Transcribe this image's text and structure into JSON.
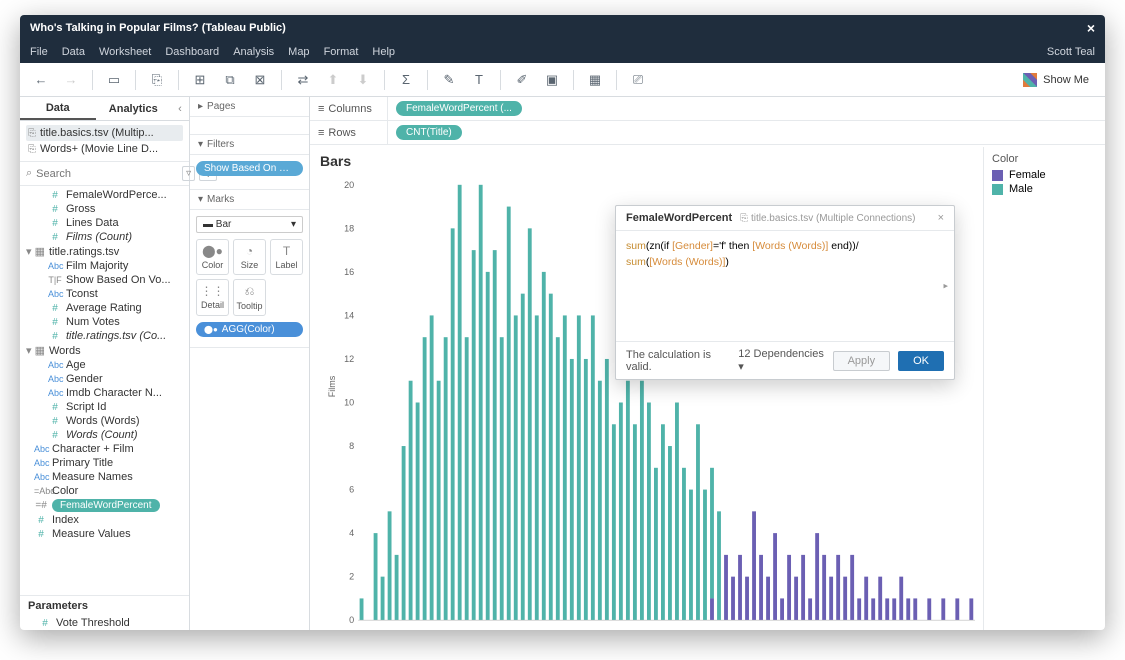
{
  "window": {
    "title": "Who's Talking in Popular Films? (Tableau Public)",
    "user": "Scott Teal"
  },
  "menu": [
    "File",
    "Data",
    "Worksheet",
    "Dashboard",
    "Analysis",
    "Map",
    "Format",
    "Help"
  ],
  "showme": "Show Me",
  "left_tabs": {
    "data": "Data",
    "analytics": "Analytics"
  },
  "datasources": [
    {
      "name": "title.basics.tsv (Multip...",
      "active": true
    },
    {
      "name": "Words+ (Movie Line D...",
      "active": false
    }
  ],
  "search_placeholder": "Search",
  "fields": {
    "top": [
      {
        "icon": "#",
        "name": "FemaleWordPerce...",
        "italic": false
      },
      {
        "icon": "#",
        "name": "Gross",
        "italic": false
      },
      {
        "icon": "#",
        "name": "Lines Data",
        "italic": false
      },
      {
        "icon": "#",
        "name": "Films (Count)",
        "italic": true
      }
    ],
    "group2_name": "title.ratings.tsv",
    "group2": [
      {
        "icon": "Abc",
        "name": "Film Majority"
      },
      {
        "icon": "T|F",
        "name": "Show Based On Vo..."
      },
      {
        "icon": "Abc",
        "name": "Tconst"
      },
      {
        "icon": "#",
        "name": "Average Rating"
      },
      {
        "icon": "#",
        "name": "Num Votes"
      },
      {
        "icon": "#",
        "name": "title.ratings.tsv (Co...",
        "italic": true
      }
    ],
    "group3_name": "Words",
    "group3": [
      {
        "icon": "Abc",
        "name": "Age"
      },
      {
        "icon": "Abc",
        "name": "Gender"
      },
      {
        "icon": "Abc",
        "name": "Imdb Character N..."
      },
      {
        "icon": "#",
        "name": "Script Id"
      },
      {
        "icon": "#",
        "name": "Words (Words)"
      },
      {
        "icon": "#",
        "name": "Words (Count)",
        "italic": true
      }
    ],
    "bottom": [
      {
        "icon": "Abc",
        "name": "Character + Film"
      },
      {
        "icon": "Abc",
        "name": "Primary Title"
      },
      {
        "icon": "Abc",
        "name": "Measure Names"
      },
      {
        "icon": "=Abc",
        "name": "Color"
      },
      {
        "icon": "pill",
        "name": "FemaleWordPercent"
      },
      {
        "icon": "#",
        "name": "Index"
      },
      {
        "icon": "#",
        "name": "Measure Values"
      }
    ]
  },
  "parameters": {
    "header": "Parameters",
    "items": [
      {
        "icon": "#",
        "name": "Vote Threshold"
      }
    ]
  },
  "pages": "Pages",
  "filters": {
    "header": "Filters",
    "pill": "Show Based On Votes: Tr..."
  },
  "marks": {
    "header": "Marks",
    "type": "Bar",
    "cells": [
      "Color",
      "Size",
      "Label",
      "Detail",
      "Tooltip"
    ],
    "agg": "AGG(Color)"
  },
  "shelves": {
    "columns": {
      "label": "Columns",
      "pill": "FemaleWordPercent (..."
    },
    "rows": {
      "label": "Rows",
      "pill": "CNT(Title)"
    }
  },
  "chart": {
    "title": "Bars",
    "ylabel": "Films",
    "y_max": 20,
    "y_ticks": [
      0,
      2,
      4,
      6,
      8,
      10,
      12,
      14,
      16,
      18,
      20
    ],
    "tick_fontsize": 9,
    "tick_color": "#666",
    "colors": {
      "male": "#4fb3a9",
      "female": "#6b5fb3"
    },
    "bars": [
      {
        "m": 1,
        "f": 0
      },
      {
        "m": 0,
        "f": 0
      },
      {
        "m": 4,
        "f": 0
      },
      {
        "m": 2,
        "f": 0
      },
      {
        "m": 5,
        "f": 0
      },
      {
        "m": 3,
        "f": 0
      },
      {
        "m": 8,
        "f": 0
      },
      {
        "m": 11,
        "f": 0
      },
      {
        "m": 10,
        "f": 0
      },
      {
        "m": 13,
        "f": 0
      },
      {
        "m": 14,
        "f": 0
      },
      {
        "m": 11,
        "f": 0
      },
      {
        "m": 13,
        "f": 0
      },
      {
        "m": 18,
        "f": 0
      },
      {
        "m": 20,
        "f": 0
      },
      {
        "m": 13,
        "f": 0
      },
      {
        "m": 17,
        "f": 0
      },
      {
        "m": 20,
        "f": 0
      },
      {
        "m": 16,
        "f": 0
      },
      {
        "m": 17,
        "f": 0
      },
      {
        "m": 13,
        "f": 0
      },
      {
        "m": 19,
        "f": 0
      },
      {
        "m": 14,
        "f": 0
      },
      {
        "m": 15,
        "f": 0
      },
      {
        "m": 18,
        "f": 0
      },
      {
        "m": 14,
        "f": 0
      },
      {
        "m": 16,
        "f": 0
      },
      {
        "m": 15,
        "f": 0
      },
      {
        "m": 13,
        "f": 0
      },
      {
        "m": 14,
        "f": 0
      },
      {
        "m": 12,
        "f": 0
      },
      {
        "m": 14,
        "f": 0
      },
      {
        "m": 12,
        "f": 0
      },
      {
        "m": 14,
        "f": 0
      },
      {
        "m": 11,
        "f": 0
      },
      {
        "m": 12,
        "f": 0
      },
      {
        "m": 9,
        "f": 0
      },
      {
        "m": 10,
        "f": 0
      },
      {
        "m": 11,
        "f": 0
      },
      {
        "m": 9,
        "f": 0
      },
      {
        "m": 11,
        "f": 0
      },
      {
        "m": 10,
        "f": 0
      },
      {
        "m": 7,
        "f": 0
      },
      {
        "m": 9,
        "f": 0
      },
      {
        "m": 8,
        "f": 0
      },
      {
        "m": 10,
        "f": 0
      },
      {
        "m": 7,
        "f": 0
      },
      {
        "m": 6,
        "f": 0
      },
      {
        "m": 9,
        "f": 0
      },
      {
        "m": 6,
        "f": 0
      },
      {
        "m": 6,
        "f": 1
      },
      {
        "m": 5,
        "f": 0
      },
      {
        "m": 0,
        "f": 3
      },
      {
        "m": 0,
        "f": 2
      },
      {
        "m": 0,
        "f": 3
      },
      {
        "m": 0,
        "f": 2
      },
      {
        "m": 0,
        "f": 5
      },
      {
        "m": 0,
        "f": 3
      },
      {
        "m": 0,
        "f": 2
      },
      {
        "m": 0,
        "f": 4
      },
      {
        "m": 0,
        "f": 1
      },
      {
        "m": 0,
        "f": 3
      },
      {
        "m": 0,
        "f": 2
      },
      {
        "m": 0,
        "f": 3
      },
      {
        "m": 0,
        "f": 1
      },
      {
        "m": 0,
        "f": 4
      },
      {
        "m": 0,
        "f": 3
      },
      {
        "m": 0,
        "f": 2
      },
      {
        "m": 0,
        "f": 3
      },
      {
        "m": 0,
        "f": 2
      },
      {
        "m": 0,
        "f": 3
      },
      {
        "m": 0,
        "f": 1
      },
      {
        "m": 0,
        "f": 2
      },
      {
        "m": 0,
        "f": 1
      },
      {
        "m": 0,
        "f": 2
      },
      {
        "m": 0,
        "f": 1
      },
      {
        "m": 0,
        "f": 1
      },
      {
        "m": 0,
        "f": 2
      },
      {
        "m": 0,
        "f": 1
      },
      {
        "m": 0,
        "f": 1
      },
      {
        "m": 0,
        "f": 0
      },
      {
        "m": 0,
        "f": 1
      },
      {
        "m": 0,
        "f": 0
      },
      {
        "m": 0,
        "f": 1
      },
      {
        "m": 0,
        "f": 0
      },
      {
        "m": 0,
        "f": 1
      },
      {
        "m": 0,
        "f": 0
      },
      {
        "m": 0,
        "f": 1
      }
    ]
  },
  "legend": {
    "header": "Color",
    "items": [
      {
        "label": "Female",
        "color": "#6b5fb3"
      },
      {
        "label": "Male",
        "color": "#4fb3a9"
      }
    ]
  },
  "calc": {
    "name": "FemaleWordPercent",
    "source": "title.basics.tsv (Multiple Connections)",
    "line1_pre": "sum",
    "line1_open": "(zn(if ",
    "line1_fld1": "[Gender]",
    "line1_mid": "='f' then ",
    "line1_fld2": "[Words (Words)]",
    "line1_end": " end))/",
    "line2_pre": "sum",
    "line2_open": "(",
    "line2_fld": "[Words (Words)]",
    "line2_end": ")",
    "status": "The calculation is valid.",
    "deps": "12 Dependencies ▾",
    "apply": "Apply",
    "ok": "OK"
  }
}
